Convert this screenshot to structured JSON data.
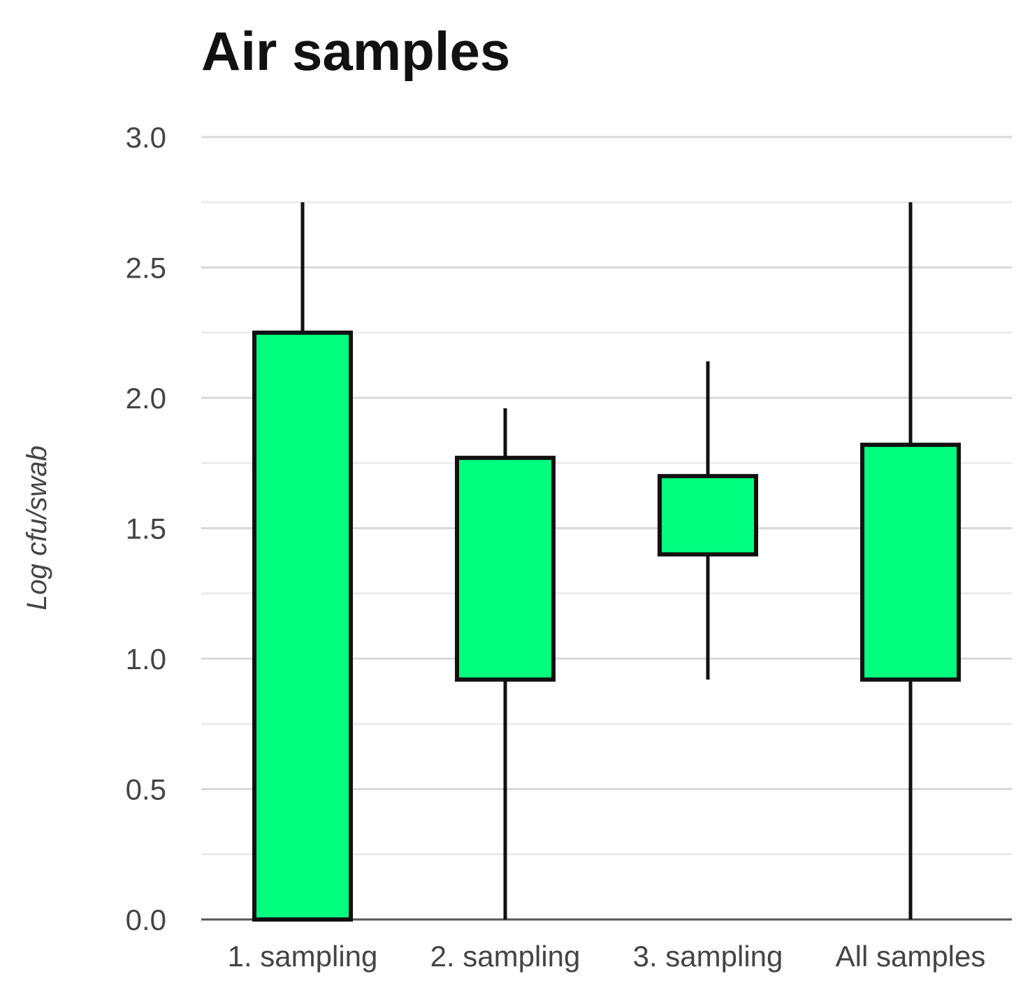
{
  "chart_data": {
    "type": "box",
    "title": "Air samples",
    "xlabel": "",
    "ylabel": "Log cfu/swab",
    "ylim": [
      0,
      3.0
    ],
    "yticks": [
      "0.0",
      "0.5",
      "1.0",
      "1.5",
      "2.0",
      "2.5",
      "3.0"
    ],
    "ytick_values": [
      0,
      0.5,
      1.0,
      1.5,
      2.0,
      2.5,
      3.0
    ],
    "minor_gridlines": true,
    "box_color": "#00ff7f",
    "categories": [
      "1. sampling",
      "2. sampling",
      "3. sampling",
      "All samples"
    ],
    "boxes": [
      {
        "category": "1. sampling",
        "whisker_low": 0.0,
        "q1": 0.0,
        "q3": 2.25,
        "whisker_high": 2.75
      },
      {
        "category": "2. sampling",
        "whisker_low": 0.0,
        "q1": 0.92,
        "q3": 1.77,
        "whisker_high": 1.96
      },
      {
        "category": "3. sampling",
        "whisker_low": 0.92,
        "q1": 1.4,
        "q3": 1.7,
        "whisker_high": 2.14
      },
      {
        "category": "All samples",
        "whisker_low": 0.0,
        "q1": 0.92,
        "q3": 1.82,
        "whisker_high": 2.75
      }
    ]
  }
}
